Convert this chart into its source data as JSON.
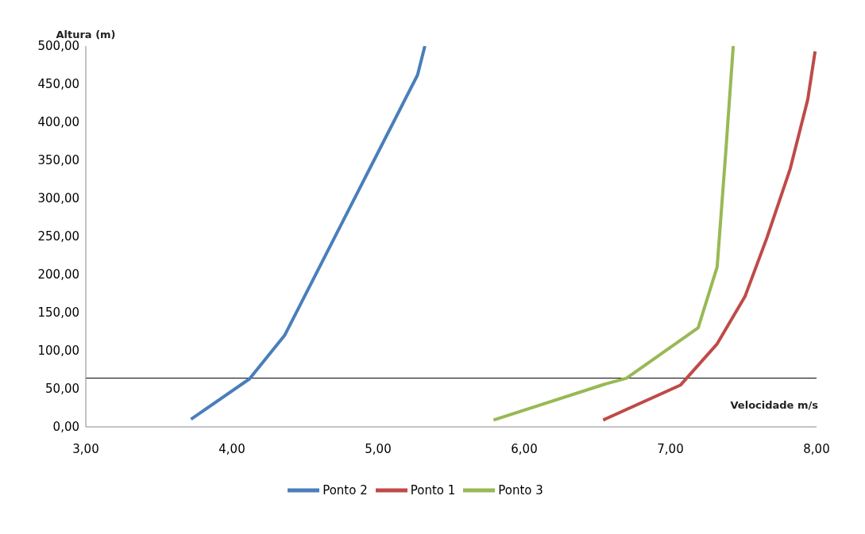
{
  "chart_data": {
    "type": "line",
    "xlabel": "Velocidade m/s",
    "ylabel": "Altura (m)",
    "xlim": [
      3,
      8
    ],
    "ylim": [
      0,
      500
    ],
    "xticks": [
      {
        "value": 3,
        "label": "3,00"
      },
      {
        "value": 4,
        "label": "4,00"
      },
      {
        "value": 5,
        "label": "5,00"
      },
      {
        "value": 6,
        "label": "6,00"
      },
      {
        "value": 7,
        "label": "7,00"
      },
      {
        "value": 8,
        "label": "8,00"
      }
    ],
    "yticks": [
      {
        "value": 0,
        "label": "0,00"
      },
      {
        "value": 50,
        "label": "50,00"
      },
      {
        "value": 100,
        "label": "100,00"
      },
      {
        "value": 150,
        "label": "150,00"
      },
      {
        "value": 200,
        "label": "200,00"
      },
      {
        "value": 250,
        "label": "250,00"
      },
      {
        "value": 300,
        "label": "300,00"
      },
      {
        "value": 350,
        "label": "350,00"
      },
      {
        "value": 400,
        "label": "400,00"
      },
      {
        "value": 450,
        "label": "450,00"
      },
      {
        "value": 500,
        "label": "500,00"
      }
    ],
    "series": [
      {
        "name": "Ponto 2",
        "color": "#4a7ebb",
        "x": [
          3.72,
          4.12,
          4.36,
          5.27,
          5.32
        ],
        "values": [
          10,
          63,
          120,
          462,
          500
        ]
      },
      {
        "name": "Ponto 1",
        "color": "#be4b48",
        "x": [
          6.54,
          7.07,
          7.32,
          7.51,
          7.66,
          7.82,
          7.94,
          7.99
        ],
        "values": [
          9,
          55,
          109,
          171,
          248,
          339,
          430,
          493
        ]
      },
      {
        "name": "Ponto 3",
        "color": "#98b954",
        "x": [
          5.79,
          6.55,
          6.7,
          7.19,
          7.32,
          7.38,
          7.43
        ],
        "values": [
          9,
          56,
          64,
          130,
          210,
          364,
          500
        ]
      }
    ],
    "ref_lines": [
      {
        "axis": "y",
        "value": 64,
        "color": "#000000"
      }
    ],
    "grid": false,
    "legend": "bottom",
    "marker": "none",
    "line_style": "solid"
  }
}
